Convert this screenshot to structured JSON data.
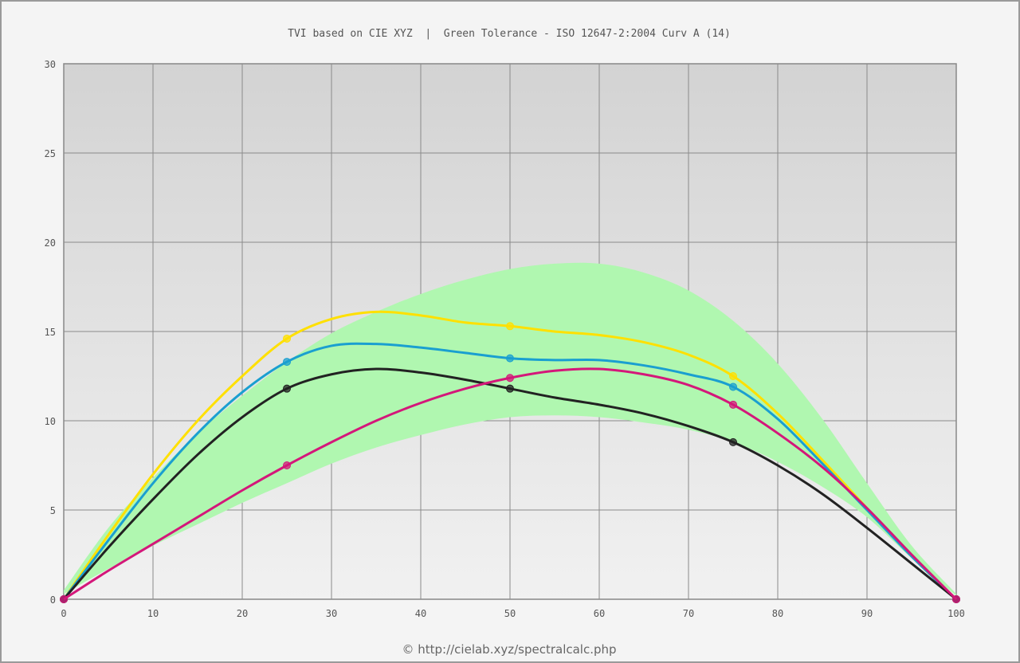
{
  "chart_data": {
    "type": "line",
    "title": "TVI based on CIE XYZ  |  Green Tolerance - ISO 12647-2:2004 Curv A (14)",
    "footer": "© http://cielab.xyz/spectralcalc.php",
    "xlim": [
      0,
      100
    ],
    "ylim": [
      0,
      30
    ],
    "x_ticks": [
      0,
      10,
      20,
      30,
      40,
      50,
      60,
      70,
      80,
      90,
      100
    ],
    "y_ticks": [
      0,
      5,
      10,
      15,
      20,
      25,
      30
    ],
    "grid": true,
    "tolerance_band": {
      "color": "#b0f7b0",
      "x": [
        0,
        5,
        10,
        15,
        20,
        25,
        30,
        35,
        40,
        45,
        50,
        55,
        60,
        65,
        70,
        75,
        80,
        85,
        90,
        95,
        100
      ],
      "upper": [
        0.5,
        4.0,
        6.8,
        9.3,
        11.4,
        13.3,
        14.9,
        16.1,
        17.1,
        17.9,
        18.5,
        18.8,
        18.8,
        18.3,
        17.3,
        15.6,
        13.2,
        10.1,
        6.5,
        3.0,
        0.3
      ],
      "lower": [
        0.3,
        1.7,
        3.0,
        4.2,
        5.4,
        6.5,
        7.6,
        8.5,
        9.2,
        9.8,
        10.2,
        10.3,
        10.2,
        9.9,
        9.5,
        8.8,
        7.7,
        6.3,
        4.6,
        2.3,
        0.2
      ]
    },
    "series": [
      {
        "color": "#ffe000",
        "points": [
          [
            0,
            0
          ],
          [
            25,
            14.6
          ],
          [
            50,
            15.3
          ],
          [
            75,
            12.5
          ],
          [
            100,
            0
          ]
        ],
        "curve": [
          [
            0,
            0
          ],
          [
            5,
            3.6
          ],
          [
            10,
            7.0
          ],
          [
            15,
            10.0
          ],
          [
            20,
            12.5
          ],
          [
            25,
            14.6
          ],
          [
            30,
            15.7
          ],
          [
            35,
            16.1
          ],
          [
            40,
            15.9
          ],
          [
            45,
            15.5
          ],
          [
            50,
            15.3
          ],
          [
            55,
            15.0
          ],
          [
            60,
            14.8
          ],
          [
            65,
            14.4
          ],
          [
            70,
            13.7
          ],
          [
            75,
            12.5
          ],
          [
            80,
            10.4
          ],
          [
            85,
            7.8
          ],
          [
            90,
            5.1
          ],
          [
            95,
            2.4
          ],
          [
            100,
            0
          ]
        ]
      },
      {
        "color": "#1a9fd0",
        "points": [
          [
            0,
            0
          ],
          [
            25,
            13.3
          ],
          [
            50,
            13.5
          ],
          [
            75,
            11.9
          ],
          [
            100,
            0
          ]
        ],
        "curve": [
          [
            0,
            0
          ],
          [
            5,
            3.3
          ],
          [
            10,
            6.5
          ],
          [
            15,
            9.3
          ],
          [
            20,
            11.6
          ],
          [
            25,
            13.3
          ],
          [
            30,
            14.2
          ],
          [
            35,
            14.3
          ],
          [
            40,
            14.1
          ],
          [
            45,
            13.8
          ],
          [
            50,
            13.5
          ],
          [
            55,
            13.4
          ],
          [
            60,
            13.4
          ],
          [
            65,
            13.1
          ],
          [
            70,
            12.6
          ],
          [
            75,
            11.9
          ],
          [
            80,
            10.1
          ],
          [
            85,
            7.6
          ],
          [
            90,
            5.0
          ],
          [
            95,
            2.4
          ],
          [
            100,
            0
          ]
        ]
      },
      {
        "color": "#222222",
        "points": [
          [
            0,
            0
          ],
          [
            25,
            11.8
          ],
          [
            50,
            11.8
          ],
          [
            75,
            8.8
          ],
          [
            100,
            0
          ]
        ],
        "curve": [
          [
            0,
            0
          ],
          [
            5,
            2.9
          ],
          [
            10,
            5.6
          ],
          [
            15,
            8.1
          ],
          [
            20,
            10.2
          ],
          [
            25,
            11.8
          ],
          [
            30,
            12.6
          ],
          [
            35,
            12.9
          ],
          [
            40,
            12.7
          ],
          [
            45,
            12.3
          ],
          [
            50,
            11.8
          ],
          [
            55,
            11.3
          ],
          [
            60,
            10.9
          ],
          [
            65,
            10.4
          ],
          [
            70,
            9.7
          ],
          [
            75,
            8.8
          ],
          [
            80,
            7.5
          ],
          [
            85,
            5.9
          ],
          [
            90,
            4.0
          ],
          [
            95,
            2.0
          ],
          [
            100,
            0
          ]
        ]
      },
      {
        "color": "#d4177a",
        "points": [
          [
            0,
            0
          ],
          [
            25,
            7.5
          ],
          [
            50,
            12.4
          ],
          [
            75,
            10.9
          ],
          [
            100,
            0
          ]
        ],
        "curve": [
          [
            0,
            0
          ],
          [
            5,
            1.6
          ],
          [
            10,
            3.1
          ],
          [
            15,
            4.6
          ],
          [
            20,
            6.1
          ],
          [
            25,
            7.5
          ],
          [
            30,
            8.8
          ],
          [
            35,
            10.0
          ],
          [
            40,
            11.0
          ],
          [
            45,
            11.8
          ],
          [
            50,
            12.4
          ],
          [
            55,
            12.8
          ],
          [
            60,
            12.9
          ],
          [
            65,
            12.6
          ],
          [
            70,
            12.0
          ],
          [
            75,
            10.9
          ],
          [
            80,
            9.3
          ],
          [
            85,
            7.4
          ],
          [
            90,
            5.1
          ],
          [
            95,
            2.5
          ],
          [
            100,
            0
          ]
        ]
      }
    ]
  }
}
